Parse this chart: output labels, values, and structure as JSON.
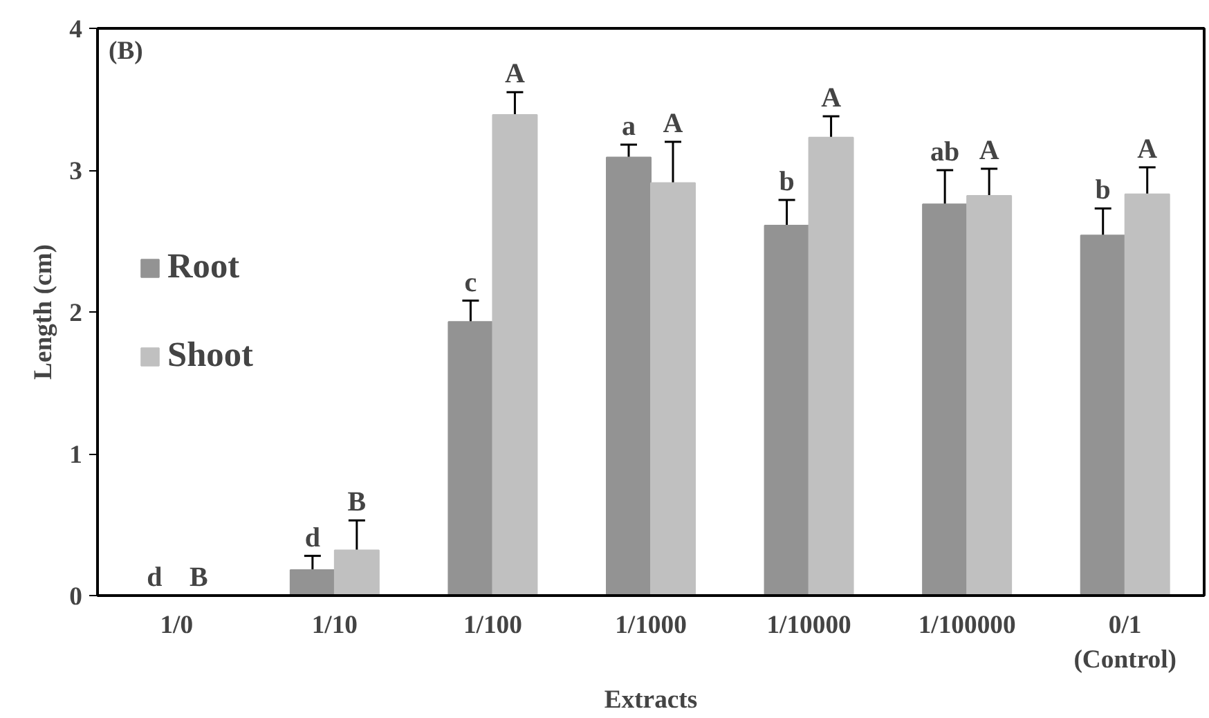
{
  "chart_data": {
    "type": "bar",
    "title": "(B)",
    "xlabel": "Extracts",
    "ylabel": "Length (cm)",
    "categories": [
      "1/0",
      "1/10",
      "1/100",
      "1/1000",
      "1/10000",
      "1/100000",
      "0/1\n(Control)"
    ],
    "series": [
      {
        "name": "Root",
        "color": "#939393",
        "values": [
          0,
          0.18,
          1.93,
          3.09,
          2.61,
          2.76,
          2.54
        ],
        "errors": [
          null,
          0.1,
          0.15,
          0.09,
          0.18,
          0.24,
          0.19
        ],
        "value_labels": [
          "d",
          "d",
          "c",
          "a",
          "b",
          "ab",
          "b"
        ]
      },
      {
        "name": "Shoot",
        "color": "#c0c0c0",
        "values": [
          0,
          0.32,
          3.39,
          2.91,
          3.23,
          2.82,
          2.83
        ],
        "errors": [
          null,
          0.21,
          0.16,
          0.29,
          0.15,
          0.19,
          0.19
        ],
        "value_labels": [
          "B",
          "B",
          "A",
          "A",
          "A",
          "A",
          "A"
        ]
      }
    ],
    "ylim": [
      0,
      4
    ],
    "yticks": [
      0,
      1,
      2,
      3,
      4
    ],
    "grid": false,
    "legend": "left"
  }
}
